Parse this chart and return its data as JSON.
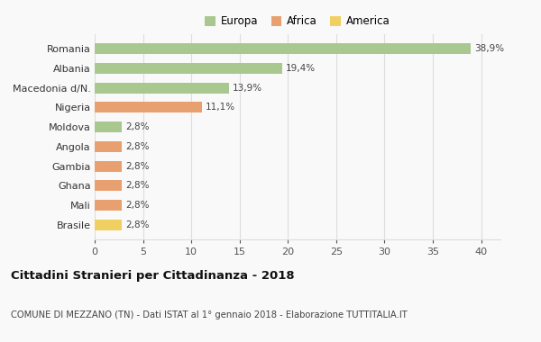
{
  "categories": [
    "Brasile",
    "Mali",
    "Ghana",
    "Gambia",
    "Angola",
    "Moldova",
    "Nigeria",
    "Macedonia d/N.",
    "Albania",
    "Romania"
  ],
  "values": [
    2.8,
    2.8,
    2.8,
    2.8,
    2.8,
    2.8,
    11.1,
    13.9,
    19.4,
    38.9
  ],
  "labels": [
    "2,8%",
    "2,8%",
    "2,8%",
    "2,8%",
    "2,8%",
    "2,8%",
    "11,1%",
    "13,9%",
    "19,4%",
    "38,9%"
  ],
  "colors": [
    "#f0d060",
    "#e8a070",
    "#e8a070",
    "#e8a070",
    "#e8a070",
    "#a8c890",
    "#e8a070",
    "#a8c890",
    "#a8c890",
    "#a8c890"
  ],
  "continent": [
    "America",
    "Africa",
    "Africa",
    "Africa",
    "Africa",
    "Europa",
    "Africa",
    "Europa",
    "Europa",
    "Europa"
  ],
  "legend_labels": [
    "Europa",
    "Africa",
    "America"
  ],
  "legend_colors": [
    "#a8c890",
    "#e8a070",
    "#f0d060"
  ],
  "title": "Cittadini Stranieri per Cittadinanza - 2018",
  "subtitle": "COMUNE DI MEZZANO (TN) - Dati ISTAT al 1° gennaio 2018 - Elaborazione TUTTITALIA.IT",
  "xlim": [
    0,
    42
  ],
  "xticks": [
    0,
    5,
    10,
    15,
    20,
    25,
    30,
    35,
    40
  ],
  "bg_color": "#f9f9f9",
  "grid_color": "#dddddd",
  "bar_height": 0.55
}
